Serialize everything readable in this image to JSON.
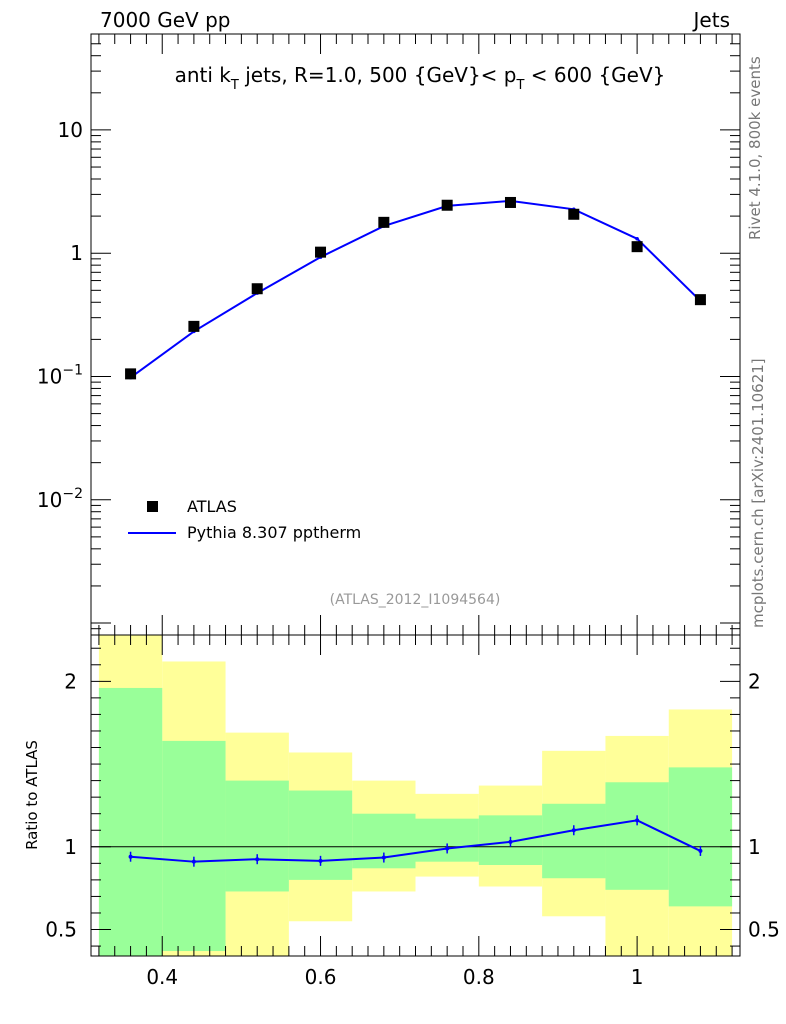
{
  "header": {
    "left": "7000 GeV pp",
    "right": "Jets"
  },
  "side_labels": {
    "rivet": "Rivet 4.1.0,  800k events",
    "source": "mcplots.cern.ch [arXiv:2401.10621]"
  },
  "watermark": "(ATLAS_2012_I1094564)",
  "chart_data": [
    {
      "type": "scatter",
      "panel": "main",
      "title_parts": {
        "prefix": "anti k",
        "sub1": "T",
        "mid": " jets, R=1.0,  500 {GeV}< p",
        "sub2": "T",
        "suffix": " < 600 {GeV}"
      },
      "yscale": "log",
      "ylim": [
        0.0008,
        60
      ],
      "xlim": [
        0.31,
        1.13
      ],
      "y_ticks": [
        {
          "value": 10,
          "label": "10",
          "exp": ""
        },
        {
          "value": 1,
          "label": "1",
          "exp": ""
        },
        {
          "value": 0.1,
          "label": "10",
          "exp": "−1"
        },
        {
          "value": 0.01,
          "label": "10",
          "exp": "−2"
        }
      ],
      "legend": {
        "position": "lower-left",
        "data_label": "ATLAS",
        "mc_label": "Pythia 8.307 pptherm"
      },
      "x": [
        0.36,
        0.44,
        0.52,
        0.6,
        0.68,
        0.76,
        0.84,
        0.92,
        1.0,
        1.08
      ],
      "series": [
        {
          "name": "ATLAS",
          "color": "#000000",
          "values": [
            0.105,
            0.255,
            0.515,
            1.02,
            1.78,
            2.45,
            2.58,
            2.07,
            1.13,
            0.42
          ]
        },
        {
          "name": "Pythia 8.307 pptherm",
          "color": "#0000ff",
          "values": [
            0.098,
            0.232,
            0.475,
            0.93,
            1.66,
            2.42,
            2.66,
            2.27,
            1.31,
            0.41
          ]
        }
      ]
    },
    {
      "type": "line",
      "panel": "ratio",
      "ylabel": "Ratio to ATLAS",
      "ylim": [
        0.34,
        2.28
      ],
      "xlim": [
        0.31,
        1.13
      ],
      "y_ticks": [
        {
          "value": 2,
          "label": "2"
        },
        {
          "value": 1,
          "label": "1"
        },
        {
          "value": 0.5,
          "label": "0.5"
        }
      ],
      "x_ticks": [
        {
          "value": 0.4,
          "label": "0.4"
        },
        {
          "value": 0.6,
          "label": "0.6"
        },
        {
          "value": 0.8,
          "label": "0.8"
        },
        {
          "value": 1.0,
          "label": "1"
        }
      ],
      "x_edges": [
        0.32,
        0.4,
        0.48,
        0.56,
        0.64,
        0.72,
        0.8,
        0.88,
        0.96,
        1.04,
        1.12
      ],
      "band_inner": {
        "color": "#99ff99",
        "lo": [
          0.34,
          0.37,
          0.73,
          0.8,
          0.87,
          0.91,
          0.89,
          0.81,
          0.74,
          0.64
        ],
        "hi": [
          1.96,
          1.64,
          1.4,
          1.34,
          1.2,
          1.17,
          1.19,
          1.26,
          1.39,
          1.48
        ]
      },
      "band_outer": {
        "color": "#ffff99",
        "lo": [
          0.34,
          0.34,
          0.34,
          0.55,
          0.73,
          0.82,
          0.76,
          0.58,
          0.34,
          0.34
        ],
        "hi": [
          2.28,
          2.12,
          1.69,
          1.57,
          1.4,
          1.32,
          1.37,
          1.58,
          1.67,
          1.83
        ]
      },
      "x": [
        0.36,
        0.44,
        0.52,
        0.6,
        0.68,
        0.76,
        0.84,
        0.92,
        1.0,
        1.08
      ],
      "series": [
        {
          "name": "Pythia 8.307 pptherm / ATLAS",
          "color": "#0000ff",
          "values": [
            0.94,
            0.91,
            0.925,
            0.915,
            0.935,
            0.99,
            1.03,
            1.1,
            1.16,
            0.975
          ]
        }
      ]
    }
  ]
}
